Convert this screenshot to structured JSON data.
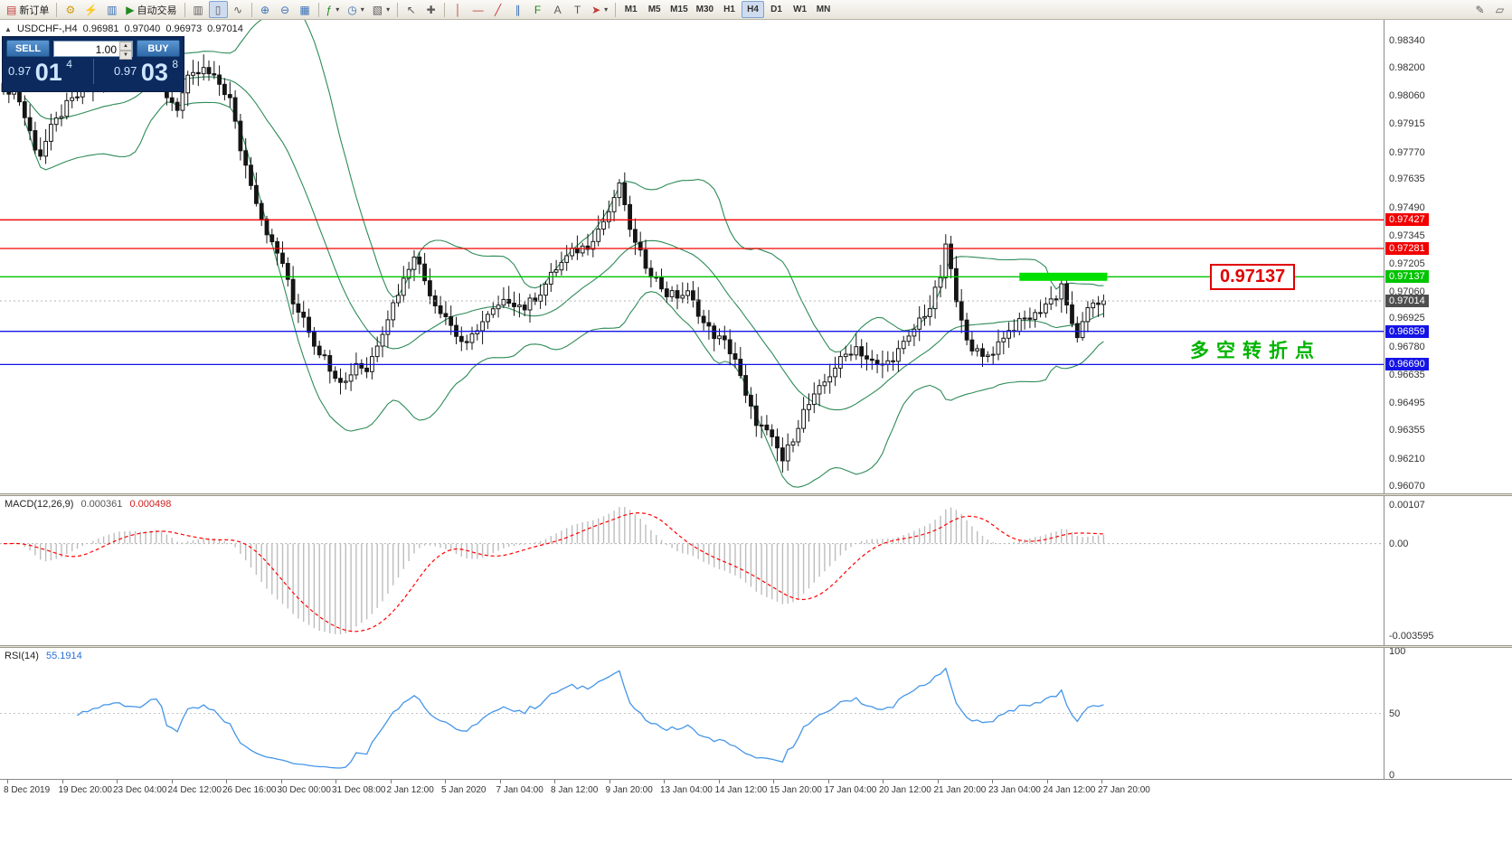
{
  "toolbar": {
    "new_order_label": "新订单",
    "autotrade_label": "自动交易",
    "timeframes": [
      "M1",
      "M5",
      "M15",
      "M30",
      "H1",
      "H4",
      "D1",
      "W1",
      "MN"
    ],
    "active_timeframe": "H4"
  },
  "icons": {
    "new_order": "▤",
    "expert_advisors": "⚙",
    "scripts": "⚡",
    "data_window": "▥",
    "autotrade_play": "▶",
    "bar_chart": "▥",
    "candle_chart": "▯",
    "line_chart": "∿",
    "zoom_in": "⊕",
    "zoom_out": "⊖",
    "tile_windows": "▦",
    "indicators": "ƒ",
    "periods": "◷",
    "templates": "▧",
    "caret": "▾",
    "cursor": "↖",
    "crosshair": "✚",
    "vline": "│",
    "hline": "―",
    "trendline": "╱",
    "channel": "∥",
    "fibonacci": "F",
    "text": "A",
    "label": "T",
    "arrows": "➤",
    "edit": "✎",
    "new_chart": "▱",
    "oneclick_toggle": "▲",
    "spin_up": "▲",
    "spin_down": "▼"
  },
  "trade_panel": {
    "sell_label": "SELL",
    "buy_label": "BUY",
    "volume": "1.00",
    "sell_price_small": "0.97",
    "sell_price_big": "01",
    "sell_price_sup": "4",
    "buy_price_small": "0.97",
    "buy_price_big": "03",
    "buy_price_sup": "8"
  },
  "chart_data": {
    "type": "candlestick",
    "symbol_period_label": "USDCHF-,H4",
    "symbol": "USDCHF-",
    "timeframe": "H4",
    "ohlc_display": {
      "open": "0.96981",
      "high": "0.97040",
      "low": "0.96973",
      "close": "0.97014"
    },
    "candle_count": 210,
    "price_range_displayed": [
      0.9604,
      0.98446
    ],
    "close_anchors": [
      [
        0,
        0.9806
      ],
      [
        2,
        0.9812
      ],
      [
        4,
        0.9795
      ],
      [
        6,
        0.978
      ],
      [
        7,
        0.9776
      ],
      [
        9,
        0.9789
      ],
      [
        12,
        0.9801
      ],
      [
        15,
        0.9808
      ],
      [
        18,
        0.9815
      ],
      [
        22,
        0.982
      ],
      [
        25,
        0.9817
      ],
      [
        28,
        0.9823
      ],
      [
        30,
        0.9818
      ],
      [
        31,
        0.9806
      ],
      [
        33,
        0.98
      ],
      [
        35,
        0.9814
      ],
      [
        38,
        0.9819
      ],
      [
        41,
        0.9812
      ],
      [
        43,
        0.9804
      ],
      [
        45,
        0.9779
      ],
      [
        47,
        0.9762
      ],
      [
        49,
        0.9744
      ],
      [
        51,
        0.973
      ],
      [
        53,
        0.9721
      ],
      [
        55,
        0.97
      ],
      [
        57,
        0.9694
      ],
      [
        59,
        0.968
      ],
      [
        61,
        0.9672
      ],
      [
        63,
        0.9664
      ],
      [
        65,
        0.966
      ],
      [
        67,
        0.967
      ],
      [
        69,
        0.9666
      ],
      [
        71,
        0.968
      ],
      [
        74,
        0.97
      ],
      [
        76,
        0.9712
      ],
      [
        78,
        0.9726
      ],
      [
        80,
        0.9712
      ],
      [
        82,
        0.97
      ],
      [
        84,
        0.9694
      ],
      [
        86,
        0.9684
      ],
      [
        88,
        0.9678
      ],
      [
        90,
        0.9688
      ],
      [
        93,
        0.9696
      ],
      [
        96,
        0.9702
      ],
      [
        99,
        0.9698
      ],
      [
        102,
        0.9706
      ],
      [
        105,
        0.9718
      ],
      [
        108,
        0.9726
      ],
      [
        111,
        0.973
      ],
      [
        114,
        0.9742
      ],
      [
        116,
        0.9752
      ],
      [
        117,
        0.9762
      ],
      [
        118,
        0.9748
      ],
      [
        120,
        0.973
      ],
      [
        122,
        0.972
      ],
      [
        124,
        0.9712
      ],
      [
        126,
        0.9705
      ],
      [
        128,
        0.9704
      ],
      [
        130,
        0.9705
      ],
      [
        132,
        0.9696
      ],
      [
        133,
        0.969
      ],
      [
        135,
        0.9684
      ],
      [
        137,
        0.968
      ],
      [
        139,
        0.9672
      ],
      [
        141,
        0.9652
      ],
      [
        143,
        0.964
      ],
      [
        145,
        0.9634
      ],
      [
        147,
        0.9626
      ],
      [
        148,
        0.962
      ],
      [
        150,
        0.9632
      ],
      [
        152,
        0.9645
      ],
      [
        154,
        0.9652
      ],
      [
        156,
        0.966
      ],
      [
        158,
        0.9668
      ],
      [
        160,
        0.9674
      ],
      [
        162,
        0.9678
      ],
      [
        164,
        0.9672
      ],
      [
        166,
        0.9668
      ],
      [
        168,
        0.967
      ],
      [
        170,
        0.9676
      ],
      [
        172,
        0.9682
      ],
      [
        174,
        0.9692
      ],
      [
        176,
        0.9698
      ],
      [
        178,
        0.9714
      ],
      [
        179,
        0.9728
      ],
      [
        180,
        0.9718
      ],
      [
        181,
        0.97
      ],
      [
        182,
        0.969
      ],
      [
        184,
        0.9678
      ],
      [
        186,
        0.9672
      ],
      [
        188,
        0.9676
      ],
      [
        190,
        0.9684
      ],
      [
        192,
        0.9688
      ],
      [
        194,
        0.9692
      ],
      [
        196,
        0.9694
      ],
      [
        198,
        0.97
      ],
      [
        200,
        0.9704
      ],
      [
        201,
        0.971
      ],
      [
        202,
        0.97
      ],
      [
        203,
        0.9688
      ],
      [
        204,
        0.9682
      ],
      [
        205,
        0.9692
      ],
      [
        206,
        0.9696
      ],
      [
        207,
        0.9698
      ],
      [
        208,
        0.97
      ],
      [
        209,
        0.97014
      ]
    ],
    "price_axis_ticks": [
      "0.98340",
      "0.98200",
      "0.98060",
      "0.97915",
      "0.97770",
      "0.97635",
      "0.97490",
      "0.97345",
      "0.97205",
      "0.97060",
      "0.96925",
      "0.96780",
      "0.96635",
      "0.96495",
      "0.96355",
      "0.96210",
      "0.96070"
    ],
    "horizontal_lines": [
      {
        "price": 0.97427,
        "label": "0.97427",
        "color": "#f20000"
      },
      {
        "price": 0.97281,
        "label": "0.97281",
        "color": "#f20000"
      },
      {
        "price": 0.97137,
        "label": "0.97137",
        "color": "#00c400"
      },
      {
        "price": 0.96859,
        "label": "0.96859",
        "color": "#1414e6"
      },
      {
        "price": 0.9669,
        "label": "0.96690",
        "color": "#1414e6"
      }
    ],
    "current_price": {
      "value": 0.97014,
      "label": "0.97014",
      "bg": "#4f4f4f"
    },
    "highlight": {
      "price": 0.97137,
      "from_index": 193,
      "to_index": 209,
      "color": "#00e000"
    },
    "callout": {
      "text": "0.97137",
      "color": "#e00000",
      "anchor_price": 0.97137
    },
    "annotation": {
      "text": "多空转折点",
      "color": "#00b400",
      "anchor_price": 0.96775
    },
    "indicators": {
      "bollinger": {
        "period": 20,
        "deviation": 2,
        "color": "#2e8b57"
      },
      "macd": {
        "title": "MACD(12,26,9)",
        "value_main": "0.000361",
        "value_signal": "0.000498",
        "scale_max": "0.00107",
        "scale_zero": "0.00",
        "scale_min": "-0.003595",
        "hist_color": "#bdbdbd",
        "signal_color": "#ff0000"
      },
      "rsi": {
        "title": "RSI(14)",
        "value": "55.1914",
        "scale": [
          "100",
          "50",
          "0"
        ],
        "color": "#4596e8"
      }
    },
    "time_labels": [
      "8 Dec 2019",
      "19 Dec 20:00",
      "23 Dec 04:00",
      "24 Dec 12:00",
      "26 Dec 16:00",
      "30 Dec 00:00",
      "31 Dec 08:00",
      "2 Jan 12:00",
      "5 Jan 2020",
      "7 Jan 04:00",
      "8 Jan 12:00",
      "9 Jan 20:00",
      "13 Jan 04:00",
      "14 Jan 12:00",
      "15 Jan 20:00",
      "17 Jan 04:00",
      "20 Jan 12:00",
      "21 Jan 20:00",
      "23 Jan 04:00",
      "24 Jan 12:00",
      "27 Jan 20:00"
    ]
  }
}
